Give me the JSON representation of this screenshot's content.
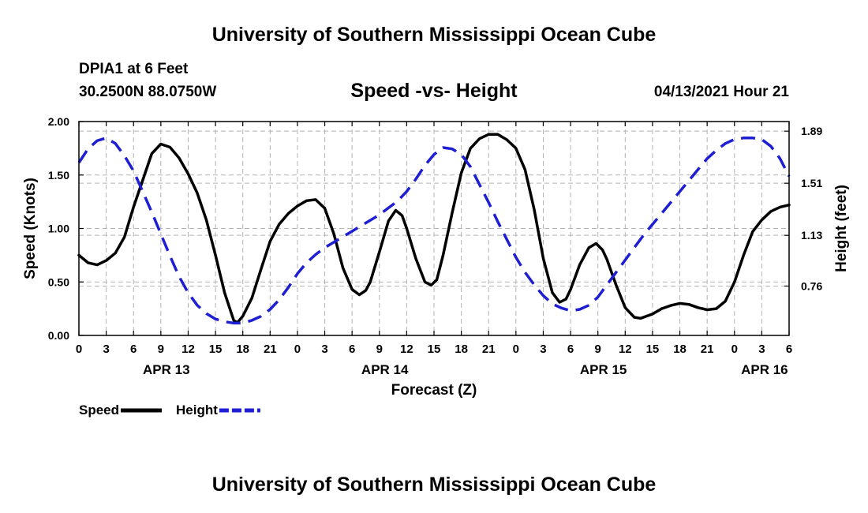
{
  "header": {
    "title": "University of Southern Mississippi Ocean Cube",
    "station": "DPIA1 at 6 Feet",
    "coords": "30.2500N  88.0750W",
    "subtitle": "Speed -vs- Height",
    "datetime": "04/13/2021 Hour 21"
  },
  "footer": {
    "title": "University of Southern Mississippi Ocean Cube"
  },
  "colors": {
    "speed": "#000000",
    "height": "#1e1ed2",
    "grid": "#b4b4b4"
  },
  "chart_data": {
    "type": "line",
    "title": "Speed -vs- Height",
    "xlabel": "Forecast (Z)",
    "ylabel": "Speed (Knots)",
    "y2label": "Height (feet)",
    "xlim": [
      0,
      78
    ],
    "ylim": [
      0,
      2.0
    ],
    "y2lim": [
      0.4,
      1.96
    ],
    "yticks": [
      0,
      0.5,
      1.0,
      1.5,
      2.0
    ],
    "ytick_labels": [
      "0.00",
      "0.50",
      "1.00",
      "1.50",
      "2.00"
    ],
    "y2ticks": [
      0.76,
      1.13,
      1.51,
      1.89
    ],
    "y2tick_labels": [
      "0.76",
      "1.13",
      "1.51",
      "1.89"
    ],
    "xticks": [
      0,
      3,
      6,
      9,
      12,
      15,
      18,
      21,
      24,
      27,
      30,
      33,
      36,
      39,
      42,
      45,
      48,
      51,
      54,
      57,
      60,
      63,
      66,
      69,
      72,
      75,
      78
    ],
    "xtick_labels": [
      "0",
      "3",
      "6",
      "9",
      "12",
      "15",
      "18",
      "21",
      "0",
      "3",
      "6",
      "9",
      "12",
      "15",
      "18",
      "21",
      "0",
      "3",
      "6",
      "9",
      "12",
      "15",
      "18",
      "21",
      "0",
      "3",
      "6"
    ],
    "date_labels": [
      {
        "x": 9.6,
        "label": "APR 13"
      },
      {
        "x": 33.6,
        "label": "APR 14"
      },
      {
        "x": 57.6,
        "label": "APR 15"
      },
      {
        "x": 75.3,
        "label": "APR 16"
      }
    ],
    "grid": true,
    "legend_position": "bottom-left",
    "series": [
      {
        "name": "Speed",
        "axis": "left",
        "style": "solid",
        "points": [
          [
            0,
            0.75
          ],
          [
            1,
            0.68
          ],
          [
            2,
            0.66
          ],
          [
            3,
            0.7
          ],
          [
            4,
            0.77
          ],
          [
            5,
            0.92
          ],
          [
            6,
            1.2
          ],
          [
            7,
            1.45
          ],
          [
            8,
            1.7
          ],
          [
            9,
            1.79
          ],
          [
            10,
            1.76
          ],
          [
            11,
            1.66
          ],
          [
            12,
            1.51
          ],
          [
            13,
            1.33
          ],
          [
            14,
            1.08
          ],
          [
            15,
            0.75
          ],
          [
            16,
            0.4
          ],
          [
            17,
            0.14
          ],
          [
            17.4,
            0.12
          ],
          [
            18,
            0.18
          ],
          [
            19,
            0.35
          ],
          [
            20,
            0.62
          ],
          [
            21,
            0.88
          ],
          [
            22,
            1.04
          ],
          [
            23,
            1.14
          ],
          [
            24,
            1.21
          ],
          [
            25,
            1.26
          ],
          [
            26,
            1.27
          ],
          [
            27,
            1.19
          ],
          [
            28,
            0.95
          ],
          [
            29,
            0.63
          ],
          [
            30,
            0.43
          ],
          [
            30.8,
            0.38
          ],
          [
            31.5,
            0.42
          ],
          [
            32,
            0.5
          ],
          [
            33,
            0.78
          ],
          [
            34,
            1.07
          ],
          [
            34.8,
            1.17
          ],
          [
            35.5,
            1.12
          ],
          [
            36,
            1.0
          ],
          [
            37,
            0.72
          ],
          [
            38,
            0.5
          ],
          [
            38.7,
            0.47
          ],
          [
            39.3,
            0.52
          ],
          [
            40,
            0.75
          ],
          [
            41,
            1.15
          ],
          [
            42,
            1.52
          ],
          [
            43,
            1.75
          ],
          [
            44,
            1.84
          ],
          [
            45,
            1.88
          ],
          [
            46,
            1.88
          ],
          [
            47,
            1.83
          ],
          [
            48,
            1.75
          ],
          [
            49,
            1.55
          ],
          [
            50,
            1.18
          ],
          [
            51,
            0.72
          ],
          [
            52,
            0.4
          ],
          [
            52.8,
            0.31
          ],
          [
            53.5,
            0.34
          ],
          [
            54,
            0.43
          ],
          [
            55,
            0.66
          ],
          [
            56,
            0.82
          ],
          [
            56.8,
            0.86
          ],
          [
            57.5,
            0.8
          ],
          [
            58,
            0.71
          ],
          [
            59,
            0.47
          ],
          [
            60,
            0.26
          ],
          [
            61,
            0.17
          ],
          [
            61.7,
            0.16
          ],
          [
            63,
            0.2
          ],
          [
            64,
            0.25
          ],
          [
            65,
            0.28
          ],
          [
            66,
            0.3
          ],
          [
            67,
            0.29
          ],
          [
            68,
            0.26
          ],
          [
            69,
            0.24
          ],
          [
            70,
            0.25
          ],
          [
            71,
            0.32
          ],
          [
            72,
            0.5
          ],
          [
            73,
            0.75
          ],
          [
            74,
            0.97
          ],
          [
            75,
            1.08
          ],
          [
            76,
            1.16
          ],
          [
            77,
            1.2
          ],
          [
            78,
            1.22
          ]
        ]
      },
      {
        "name": "Height",
        "axis": "right",
        "style": "dashed",
        "points": [
          [
            0,
            1.66
          ],
          [
            1,
            1.76
          ],
          [
            2,
            1.82
          ],
          [
            3,
            1.84
          ],
          [
            4,
            1.8
          ],
          [
            5,
            1.71
          ],
          [
            6,
            1.6
          ],
          [
            7,
            1.45
          ],
          [
            8,
            1.3
          ],
          [
            9,
            1.14
          ],
          [
            10,
            0.98
          ],
          [
            11,
            0.83
          ],
          [
            12,
            0.71
          ],
          [
            13,
            0.62
          ],
          [
            14,
            0.56
          ],
          [
            15,
            0.52
          ],
          [
            16,
            0.5
          ],
          [
            17,
            0.49
          ],
          [
            18,
            0.49
          ],
          [
            19,
            0.51
          ],
          [
            20,
            0.54
          ],
          [
            21,
            0.59
          ],
          [
            22,
            0.66
          ],
          [
            23,
            0.75
          ],
          [
            24,
            0.85
          ],
          [
            25,
            0.93
          ],
          [
            26,
            0.99
          ],
          [
            27,
            1.04
          ],
          [
            28,
            1.08
          ],
          [
            29,
            1.12
          ],
          [
            30,
            1.16
          ],
          [
            31,
            1.2
          ],
          [
            32,
            1.24
          ],
          [
            33,
            1.28
          ],
          [
            34,
            1.33
          ],
          [
            35,
            1.38
          ],
          [
            36,
            1.45
          ],
          [
            37,
            1.54
          ],
          [
            38,
            1.64
          ],
          [
            39,
            1.72
          ],
          [
            40,
            1.77
          ],
          [
            41,
            1.76
          ],
          [
            42,
            1.72
          ],
          [
            43,
            1.63
          ],
          [
            44,
            1.5
          ],
          [
            45,
            1.37
          ],
          [
            46,
            1.23
          ],
          [
            47,
            1.1
          ],
          [
            48,
            0.97
          ],
          [
            49,
            0.86
          ],
          [
            50,
            0.77
          ],
          [
            51,
            0.69
          ],
          [
            52,
            0.63
          ],
          [
            53,
            0.6
          ],
          [
            54,
            0.58
          ],
          [
            55,
            0.59
          ],
          [
            56,
            0.62
          ],
          [
            57,
            0.68
          ],
          [
            58,
            0.77
          ],
          [
            59,
            0.86
          ],
          [
            60,
            0.95
          ],
          [
            61,
            1.04
          ],
          [
            62,
            1.13
          ],
          [
            63,
            1.21
          ],
          [
            64,
            1.29
          ],
          [
            65,
            1.37
          ],
          [
            66,
            1.45
          ],
          [
            67,
            1.53
          ],
          [
            68,
            1.61
          ],
          [
            69,
            1.69
          ],
          [
            70,
            1.75
          ],
          [
            71,
            1.8
          ],
          [
            72,
            1.83
          ],
          [
            73,
            1.84
          ],
          [
            74,
            1.84
          ],
          [
            75,
            1.83
          ],
          [
            76,
            1.78
          ],
          [
            77,
            1.69
          ],
          [
            78,
            1.56
          ]
        ]
      }
    ]
  }
}
